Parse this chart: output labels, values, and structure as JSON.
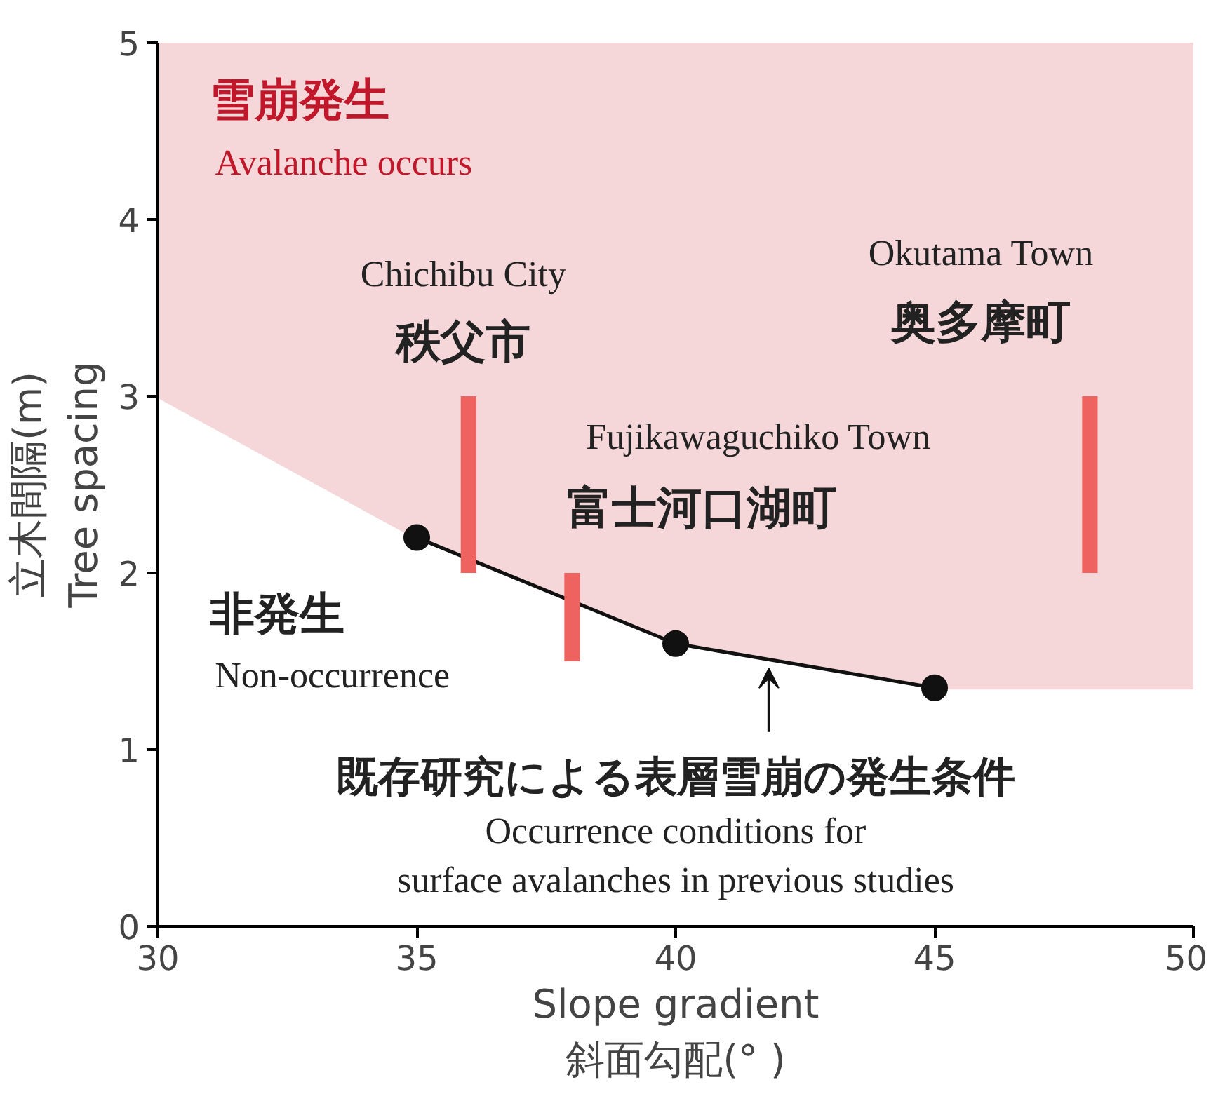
{
  "chart_data": {
    "type": "line",
    "xlabel": "Slope gradient\n斜面勾配(° )",
    "ylabel": "立木間隔(m)\nTree spacing",
    "xlim": [
      30,
      50
    ],
    "ylim": [
      0,
      5
    ],
    "xticks": [
      30,
      35,
      40,
      45,
      50
    ],
    "yticks": [
      0,
      1,
      2,
      3,
      4,
      5
    ],
    "grid": false,
    "series": [
      {
        "color": "#f5d6d9",
        "x": [
          30,
          35,
          40,
          45,
          50
        ],
        "values": [
          3.0,
          2.2,
          1.6,
          1.35,
          1.35
        ],
        "lower": [
          3.0,
          2.2,
          1.6,
          1.35,
          1.35
        ],
        "upper": [
          5,
          5,
          5,
          5,
          5
        ]
      },
      {
        "color": "#111111",
        "marker": "circle",
        "line_style": "solid",
        "x": [
          35,
          40,
          45
        ],
        "values": [
          2.2,
          1.6,
          1.35
        ]
      },
      {
        "type": "bar",
        "color": "#ee6360",
        "x": [
          36,
          38,
          48
        ],
        "base": [
          2.0,
          1.5,
          2.0
        ],
        "values": [
          1.0,
          0.5,
          1.0
        ]
      }
    ],
    "annotations": [
      "雪崩発生",
      "Avalanche occurs",
      "Chichibu City",
      "秩父市",
      "Okutama Town",
      "奥多摩町",
      "Fujikawaguchiko Town",
      "富士河口湖町",
      "非発生",
      "Non-occurrence",
      {
        "text": "既存研究による表層雪崩の発生条件",
        "x": 41.8,
        "y": 1.46
      },
      "Occurrence conditions for",
      "surface avalanches in previous studies"
    ]
  }
}
